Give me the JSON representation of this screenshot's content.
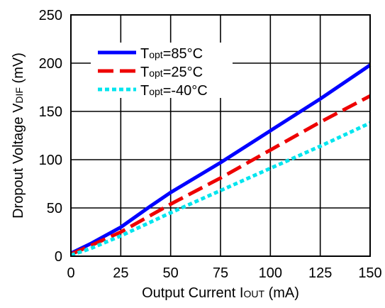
{
  "chart_data": {
    "type": "line",
    "xlabel": "Output Current I",
    "xlabel_sub": "OUT",
    "xlabel_unit": " (mA)",
    "ylabel": "Dropout Voltage V",
    "ylabel_sub": "DIF",
    "ylabel_unit": " (mV)",
    "xlim": [
      0,
      150
    ],
    "ylim": [
      0,
      250
    ],
    "x_ticks": [
      "0",
      "25",
      "50",
      "75",
      "100",
      "125",
      "150"
    ],
    "y_ticks": [
      "0",
      "50",
      "100",
      "150",
      "200",
      "250"
    ],
    "grid": true,
    "legend_position": "top-left",
    "series": [
      {
        "name_main": "T",
        "name_sub": "opt",
        "name_rest": "=85°C",
        "color": "#0000ff",
        "style": "solid",
        "x": [
          0,
          10,
          25,
          40,
          50,
          75,
          100,
          125,
          150
        ],
        "y": [
          3,
          13,
          30,
          52,
          66,
          97,
          130,
          163,
          198
        ]
      },
      {
        "name_main": "T",
        "name_sub": "opt",
        "name_rest": "=25°C",
        "color": "#ee0000",
        "style": "dashed",
        "x": [
          0,
          10,
          25,
          50,
          75,
          100,
          125,
          150
        ],
        "y": [
          2,
          11,
          25,
          54,
          81,
          110,
          139,
          166
        ]
      },
      {
        "name_main": "T",
        "name_sub": "opt",
        "name_rest": "=-40°C",
        "color": "#00e5ee",
        "style": "dotted",
        "x": [
          0,
          10,
          25,
          50,
          75,
          100,
          125,
          150
        ],
        "y": [
          1,
          8,
          21,
          45,
          68,
          91,
          114,
          138
        ]
      }
    ]
  }
}
